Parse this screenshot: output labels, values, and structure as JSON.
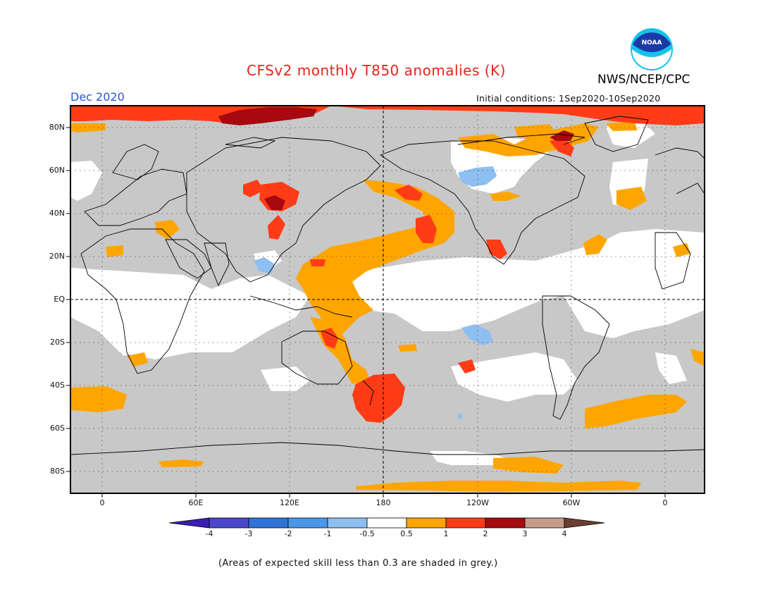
{
  "header": {
    "title": "CFSv2 monthly T850 anomalies (K)",
    "organization": "NWS/NCEP/CPC",
    "valid_month": "Dec 2020",
    "initial_conditions": "Initial conditions: 1Sep2020-10Sep2020"
  },
  "logo": {
    "text": "NOAA"
  },
  "map": {
    "lat_labels": [
      "80N",
      "60N",
      "40N",
      "20N",
      "EQ",
      "20S",
      "40S",
      "60S",
      "80S"
    ],
    "lon_labels": [
      "0",
      "60E",
      "120E",
      "180",
      "120W",
      "60W",
      "0"
    ]
  },
  "colorbar": {
    "labels": [
      "-4",
      "-3",
      "-2",
      "-1",
      "-0.5",
      "0.5",
      "1",
      "2",
      "3",
      "4"
    ],
    "colors": [
      "#3a1eb3",
      "#4a47cf",
      "#2f73d8",
      "#4c96e8",
      "#8dbff2",
      "#ffffff",
      "#ffa500",
      "#ff3c16",
      "#a6090f",
      "#c79b8a",
      "#6b4032"
    ]
  },
  "footnote": "(Areas of expected skill less than 0.3 are shaded in grey.)",
  "colors": {
    "grey_mask": "#c8c8c8",
    "title_red": "#e8231b",
    "label_blue": "#2a55d8"
  }
}
